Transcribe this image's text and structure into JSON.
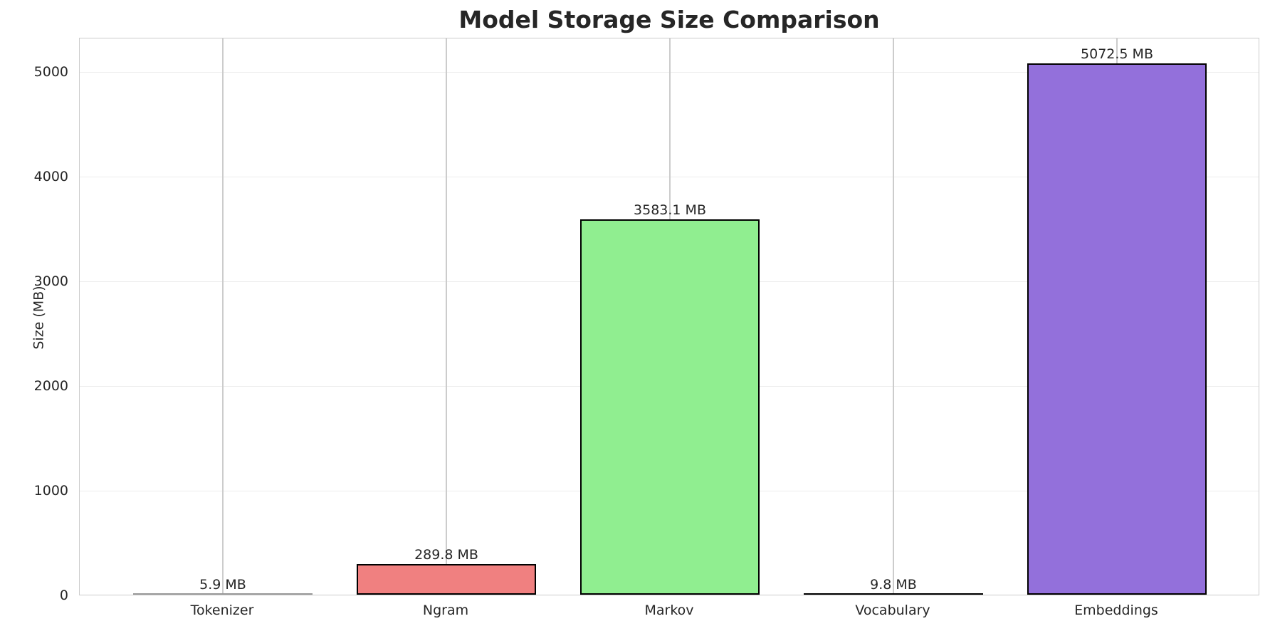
{
  "chart_data": {
    "type": "bar",
    "title": "Model Storage Size Comparison",
    "xlabel": "",
    "ylabel": "Size (MB)",
    "ylim": [
      0,
      5326
    ],
    "yticks": [
      0,
      1000,
      2000,
      3000,
      4000,
      5000
    ],
    "categories": [
      "Tokenizer",
      "Ngram",
      "Markov",
      "Vocabulary",
      "Embeddings"
    ],
    "values": [
      5.9,
      289.8,
      3583.1,
      9.8,
      5072.5
    ],
    "labels": [
      "5.9 MB",
      "289.8 MB",
      "3583.1 MB",
      "9.8 MB",
      "5072.5 MB"
    ],
    "colors": [
      "#87ceeb",
      "#f08080",
      "#90ee90",
      "#ffd700",
      "#9370db"
    ],
    "grid": true,
    "legend": null
  }
}
